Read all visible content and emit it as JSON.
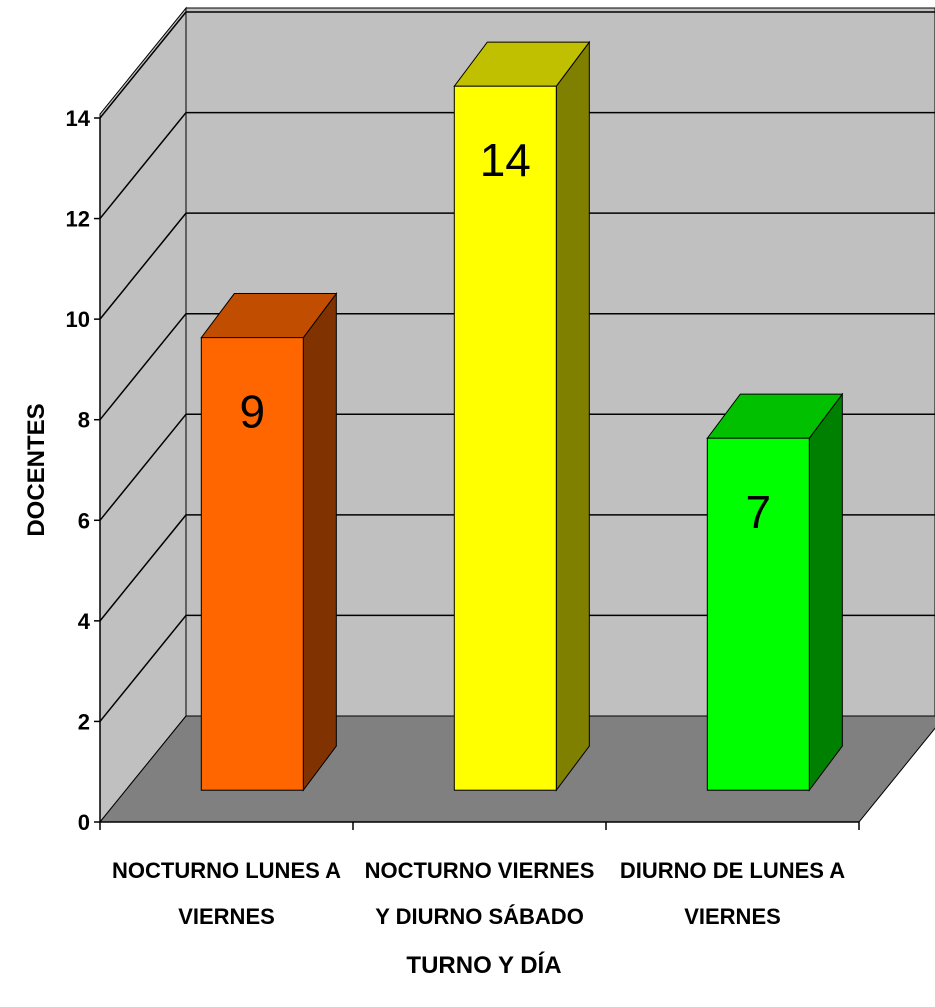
{
  "chart_data": {
    "type": "bar",
    "title": "",
    "xlabel": "TURNO Y DÍA",
    "ylabel": "DOCENTES",
    "ylim": [
      0,
      14
    ],
    "yticks": [
      0,
      2,
      4,
      6,
      8,
      10,
      12,
      14
    ],
    "grid": true,
    "legend": "none",
    "categories": [
      [
        "NOCTURNO LUNES A",
        "VIERNES"
      ],
      [
        "NOCTURNO VIERNES",
        "Y DIURNO SÁBADO"
      ],
      [
        "DIURNO DE LUNES A",
        "VIERNES"
      ]
    ],
    "values": [
      9,
      14,
      7
    ],
    "data_labels": [
      "9",
      "14",
      "7"
    ],
    "bar_colors": [
      {
        "front": "#FF6600",
        "top": "#C04D00",
        "side": "#803300"
      },
      {
        "front": "#FFFF00",
        "top": "#C0C000",
        "side": "#808000"
      },
      {
        "front": "#00FF00",
        "top": "#00C000",
        "side": "#008000"
      }
    ],
    "wall_color": "#C0C0C0",
    "floor_color": "#808080"
  }
}
